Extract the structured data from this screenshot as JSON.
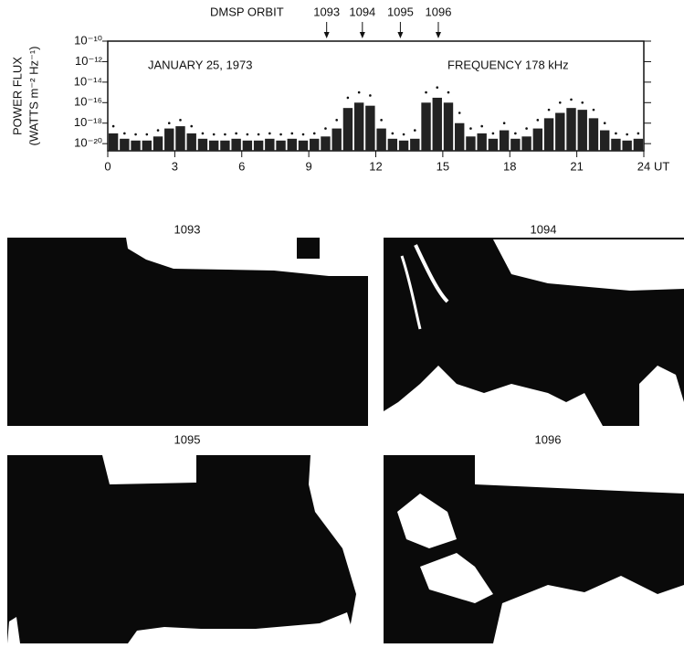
{
  "chart_data": {
    "type": "bar",
    "log": true,
    "title": "DMSP ORBIT",
    "annotations": [
      "JANUARY 25, 1973",
      "FREQUENCY 178 kHz"
    ],
    "orbits": [
      {
        "label": "1093",
        "x": 9.8
      },
      {
        "label": "1094",
        "x": 11.4
      },
      {
        "label": "1095",
        "x": 13.1
      },
      {
        "label": "1096",
        "x": 14.8
      }
    ],
    "ylabel": [
      "POWER FLUX",
      "(WATTS m⁻² Hz⁻¹)"
    ],
    "xlabel": "UT",
    "x": [
      0.25,
      0.75,
      1.25,
      1.75,
      2.25,
      2.75,
      3.25,
      3.75,
      4.25,
      4.75,
      5.25,
      5.75,
      6.25,
      6.75,
      7.25,
      7.75,
      8.25,
      8.75,
      9.25,
      9.75,
      10.25,
      10.75,
      11.25,
      11.75,
      12.25,
      12.75,
      13.25,
      13.75,
      14.25,
      14.75,
      15.25,
      15.75,
      16.25,
      16.75,
      17.25,
      17.75,
      18.25,
      18.75,
      19.25,
      19.75,
      20.25,
      20.75,
      21.25,
      21.75,
      22.25,
      22.75,
      23.25,
      23.75
    ],
    "series": [
      {
        "color": "#222222",
        "values": [
          1e-19,
          3e-20,
          2e-20,
          2e-20,
          5e-20,
          3e-19,
          5e-19,
          1e-19,
          3e-20,
          2e-20,
          2e-20,
          3e-20,
          2e-20,
          2e-20,
          3e-20,
          2e-20,
          3e-20,
          2e-20,
          3e-20,
          5e-20,
          3e-19,
          3e-17,
          1e-16,
          5e-17,
          3e-19,
          3e-20,
          2e-20,
          3e-20,
          1e-16,
          3e-16,
          1e-16,
          1e-18,
          5e-20,
          1e-19,
          3e-20,
          2e-19,
          3e-20,
          5e-20,
          3e-19,
          3e-18,
          1e-17,
          3e-17,
          2e-17,
          3e-18,
          2e-19,
          3e-20,
          2e-20,
          3e-20
        ]
      },
      {
        "color": "#111111",
        "values": [
          5e-19,
          1e-19,
          8e-20,
          8e-20,
          2e-19,
          1e-18,
          2e-18,
          5e-19,
          1e-19,
          8e-20,
          8e-20,
          1e-19,
          8e-20,
          8e-20,
          1e-19,
          8e-20,
          1e-19,
          8e-20,
          1e-19,
          3e-19,
          2e-18,
          3e-16,
          1e-15,
          5e-16,
          2e-18,
          1e-19,
          8e-20,
          2e-19,
          1e-15,
          3e-15,
          1e-15,
          1e-17,
          3e-19,
          5e-19,
          1e-19,
          1e-18,
          1e-19,
          3e-19,
          2e-18,
          2e-17,
          1e-16,
          2e-16,
          1e-16,
          2e-17,
          1e-18,
          1e-19,
          8e-20,
          1e-19
        ]
      }
    ],
    "xlim": [
      0,
      24
    ],
    "xticks": [
      0,
      3,
      6,
      9,
      12,
      15,
      18,
      21,
      24
    ],
    "ylim": [
      2e-21,
      1e-10
    ],
    "yticks": [
      {
        "value": 1e-10,
        "label": "10⁻¹⁰"
      },
      {
        "value": 1e-12,
        "label": "10⁻¹²"
      },
      {
        "value": 1e-14,
        "label": "10⁻¹⁴"
      },
      {
        "value": 1e-16,
        "label": "10⁻¹⁶"
      },
      {
        "value": 1e-18,
        "label": "10⁻¹⁸"
      },
      {
        "value": 1e-20,
        "label": "10⁻²⁰"
      }
    ]
  },
  "images": {
    "labels": [
      "1093",
      "1094",
      "1095",
      "1096"
    ]
  }
}
